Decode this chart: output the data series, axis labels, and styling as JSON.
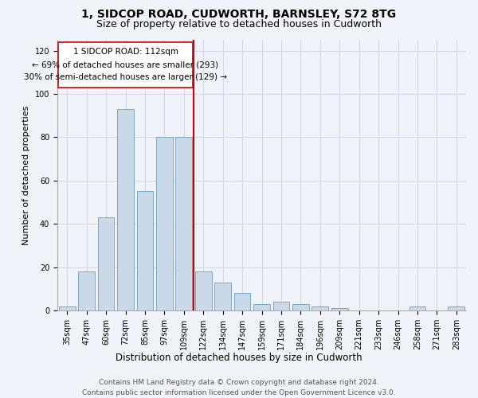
{
  "title1": "1, SIDCOP ROAD, CUDWORTH, BARNSLEY, S72 8TG",
  "title2": "Size of property relative to detached houses in Cudworth",
  "xlabel": "Distribution of detached houses by size in Cudworth",
  "ylabel": "Number of detached properties",
  "categories": [
    "35sqm",
    "47sqm",
    "60sqm",
    "72sqm",
    "85sqm",
    "97sqm",
    "109sqm",
    "122sqm",
    "134sqm",
    "147sqm",
    "159sqm",
    "171sqm",
    "184sqm",
    "196sqm",
    "209sqm",
    "221sqm",
    "233sqm",
    "246sqm",
    "258sqm",
    "271sqm",
    "283sqm"
  ],
  "values": [
    2,
    18,
    43,
    93,
    55,
    80,
    80,
    18,
    13,
    8,
    3,
    4,
    3,
    2,
    1,
    0,
    0,
    0,
    2,
    0,
    2
  ],
  "bar_color": "#c9d9e8",
  "bar_edge_color": "#7aa8c8",
  "property_index": 6,
  "property_label": "1 SIDCOP ROAD: 112sqm",
  "annotation_line1": "← 69% of detached houses are smaller (293)",
  "annotation_line2": "30% of semi-detached houses are larger (129) →",
  "vline_color": "#cc0000",
  "annotation_box_color": "#ffffff",
  "annotation_box_edge": "#cc0000",
  "ylim": [
    0,
    125
  ],
  "yticks": [
    0,
    20,
    40,
    60,
    80,
    100,
    120
  ],
  "grid_color": "#d0d8e8",
  "footer1": "Contains HM Land Registry data © Crown copyright and database right 2024.",
  "footer2": "Contains public sector information licensed under the Open Government Licence v3.0.",
  "bg_color": "#f0f4fa",
  "title1_fontsize": 10,
  "title2_fontsize": 9,
  "xlabel_fontsize": 8.5,
  "ylabel_fontsize": 8,
  "footer_fontsize": 6.5,
  "tick_fontsize": 7,
  "annotation_fontsize": 7.5
}
